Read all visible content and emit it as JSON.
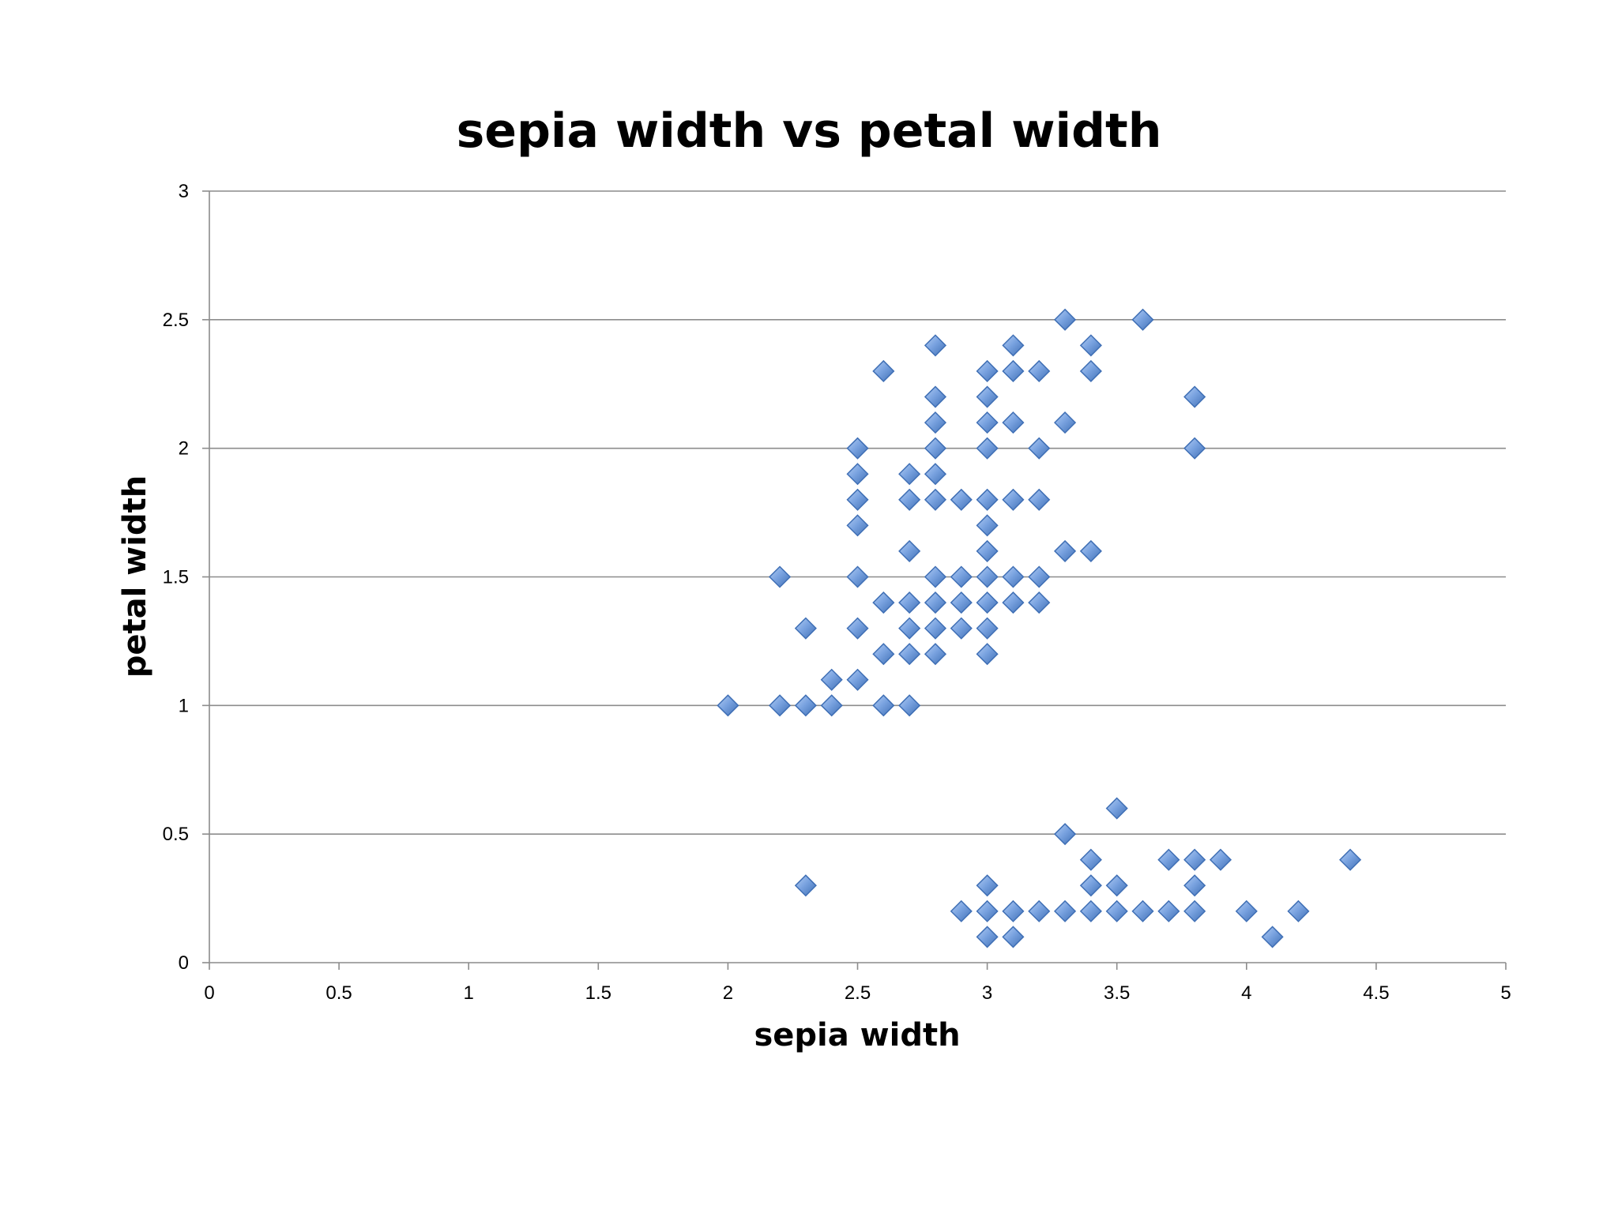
{
  "chart_data": {
    "type": "scatter",
    "title": "sepia width vs petal width",
    "xlabel": "sepia width",
    "ylabel": "petal width",
    "xlim": [
      0,
      5
    ],
    "ylim": [
      0,
      3
    ],
    "x_ticks": [
      0,
      0.5,
      1,
      1.5,
      2,
      2.5,
      3,
      3.5,
      4,
      4.5,
      5
    ],
    "x_tick_labels": [
      "0",
      "0.5",
      "1",
      "1.5",
      "2",
      "2.5",
      "3",
      "3.5",
      "4",
      "4.5",
      "5"
    ],
    "y_ticks": [
      0,
      0.5,
      1,
      1.5,
      2,
      2.5,
      3
    ],
    "y_tick_labels": [
      "0",
      "0.5",
      "1",
      "1.5",
      "2",
      "2.5",
      "3"
    ],
    "grid": "horizontal",
    "marker": "diamond",
    "colors": {
      "marker_fill": "#7aa3e0",
      "marker_stroke": "#3f6fb5",
      "gridline": "#8c8c8c"
    },
    "series": [
      {
        "name": "petal width",
        "points": [
          [
            2.0,
            1.0
          ],
          [
            2.2,
            1.0
          ],
          [
            2.3,
            1.0
          ],
          [
            2.4,
            1.0
          ],
          [
            2.6,
            1.0
          ],
          [
            2.7,
            1.0
          ],
          [
            2.4,
            1.1
          ],
          [
            2.5,
            1.1
          ],
          [
            2.6,
            1.2
          ],
          [
            2.7,
            1.2
          ],
          [
            2.8,
            1.2
          ],
          [
            3.0,
            1.2
          ],
          [
            2.3,
            1.3
          ],
          [
            2.5,
            1.3
          ],
          [
            2.7,
            1.3
          ],
          [
            2.8,
            1.3
          ],
          [
            2.9,
            1.3
          ],
          [
            3.0,
            1.3
          ],
          [
            2.6,
            1.4
          ],
          [
            2.7,
            1.4
          ],
          [
            2.8,
            1.4
          ],
          [
            2.9,
            1.4
          ],
          [
            3.0,
            1.4
          ],
          [
            3.1,
            1.4
          ],
          [
            3.2,
            1.4
          ],
          [
            2.2,
            1.5
          ],
          [
            2.5,
            1.5
          ],
          [
            2.8,
            1.5
          ],
          [
            2.9,
            1.5
          ],
          [
            3.0,
            1.5
          ],
          [
            3.1,
            1.5
          ],
          [
            3.2,
            1.5
          ],
          [
            2.7,
            1.6
          ],
          [
            3.0,
            1.6
          ],
          [
            3.3,
            1.6
          ],
          [
            3.4,
            1.6
          ],
          [
            2.5,
            1.7
          ],
          [
            3.0,
            1.7
          ],
          [
            2.5,
            1.8
          ],
          [
            2.7,
            1.8
          ],
          [
            2.8,
            1.8
          ],
          [
            2.9,
            1.8
          ],
          [
            3.0,
            1.8
          ],
          [
            3.1,
            1.8
          ],
          [
            3.2,
            1.8
          ],
          [
            2.5,
            1.9
          ],
          [
            2.7,
            1.9
          ],
          [
            2.8,
            1.9
          ],
          [
            2.5,
            2.0
          ],
          [
            2.8,
            2.0
          ],
          [
            3.0,
            2.0
          ],
          [
            3.2,
            2.0
          ],
          [
            3.8,
            2.0
          ],
          [
            2.8,
            2.1
          ],
          [
            3.0,
            2.1
          ],
          [
            3.1,
            2.1
          ],
          [
            3.3,
            2.1
          ],
          [
            2.8,
            2.2
          ],
          [
            3.0,
            2.2
          ],
          [
            3.8,
            2.2
          ],
          [
            2.6,
            2.3
          ],
          [
            3.0,
            2.3
          ],
          [
            3.1,
            2.3
          ],
          [
            3.2,
            2.3
          ],
          [
            3.4,
            2.3
          ],
          [
            2.8,
            2.4
          ],
          [
            3.1,
            2.4
          ],
          [
            3.4,
            2.4
          ],
          [
            3.3,
            2.5
          ],
          [
            3.6,
            2.5
          ],
          [
            3.0,
            0.1
          ],
          [
            3.1,
            0.1
          ],
          [
            4.1,
            0.1
          ],
          [
            2.9,
            0.2
          ],
          [
            3.0,
            0.2
          ],
          [
            3.1,
            0.2
          ],
          [
            3.2,
            0.2
          ],
          [
            3.3,
            0.2
          ],
          [
            3.4,
            0.2
          ],
          [
            3.5,
            0.2
          ],
          [
            3.6,
            0.2
          ],
          [
            3.7,
            0.2
          ],
          [
            3.8,
            0.2
          ],
          [
            4.0,
            0.2
          ],
          [
            4.2,
            0.2
          ],
          [
            2.3,
            0.3
          ],
          [
            3.0,
            0.3
          ],
          [
            3.4,
            0.3
          ],
          [
            3.5,
            0.3
          ],
          [
            3.8,
            0.3
          ],
          [
            3.4,
            0.4
          ],
          [
            3.7,
            0.4
          ],
          [
            3.8,
            0.4
          ],
          [
            3.9,
            0.4
          ],
          [
            4.4,
            0.4
          ],
          [
            3.3,
            0.5
          ],
          [
            3.5,
            0.6
          ]
        ]
      }
    ]
  }
}
